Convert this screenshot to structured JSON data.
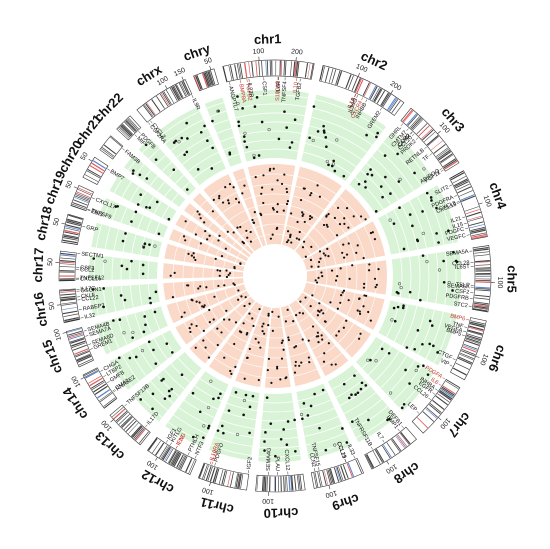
{
  "colors": {
    "outer_band": "#d8f3d6",
    "inner_band": "#fbd9c8",
    "band_ring": "#ffffff",
    "point": "#111111",
    "open_point": "#666666",
    "gene_red": "#c0392b",
    "ideogram_dark": "#222222",
    "ideogram_red": "#d94040",
    "ideogram_blue": "#3a6ec8"
  },
  "chromosomes": [
    {
      "name": "chr1",
      "size": 250,
      "ticks": [
        "100",
        "200"
      ]
    },
    {
      "name": "chr2",
      "size": 243,
      "ticks": [
        "100",
        "200"
      ]
    },
    {
      "name": "chr3",
      "size": 198,
      "ticks": [
        "100"
      ]
    },
    {
      "name": "chr4",
      "size": 191,
      "ticks": [
        "100"
      ]
    },
    {
      "name": "chr5",
      "size": 181,
      "ticks": [
        "100"
      ]
    },
    {
      "name": "chr6",
      "size": 171,
      "ticks": [
        "100"
      ]
    },
    {
      "name": "chr7",
      "size": 159,
      "ticks": [
        "100"
      ]
    },
    {
      "name": "chr8",
      "size": 146,
      "ticks": [
        "100"
      ]
    },
    {
      "name": "chr9",
      "size": 141,
      "ticks": [
        "100"
      ]
    },
    {
      "name": "chr10",
      "size": 135,
      "ticks": [
        "100"
      ]
    },
    {
      "name": "chr11",
      "size": 135,
      "ticks": [
        "100"
      ]
    },
    {
      "name": "chr12",
      "size": 133,
      "ticks": [
        "100"
      ]
    },
    {
      "name": "chr13",
      "size": 115,
      "ticks": [
        "100"
      ]
    },
    {
      "name": "chr14",
      "size": 107,
      "ticks": [
        "100"
      ]
    },
    {
      "name": "chr15",
      "size": 102,
      "ticks": [
        "100"
      ]
    },
    {
      "name": "chr16",
      "size": 90,
      "ticks": [
        "50"
      ]
    },
    {
      "name": "chr17",
      "size": 81,
      "ticks": [
        "50"
      ]
    },
    {
      "name": "chr18",
      "size": 78,
      "ticks": [
        "50"
      ]
    },
    {
      "name": "chr19",
      "size": 59,
      "ticks": [
        "50"
      ]
    },
    {
      "name": "chr20",
      "size": 63,
      "ticks": [
        "50"
      ]
    },
    {
      "name": "chr21",
      "size": 48,
      "ticks": [
        ""
      ]
    },
    {
      "name": "chr22",
      "size": 51,
      "ticks": [
        ""
      ]
    },
    {
      "name": "chrx",
      "size": 155,
      "ticks": [
        "100",
        "150"
      ]
    },
    {
      "name": "chry",
      "size": 59,
      "ticks": [
        "50"
      ]
    }
  ],
  "genes": [
    {
      "label": "ANGPTL7",
      "chr": "chr1",
      "pos": 8,
      "red": false
    },
    {
      "label": "BMP8A",
      "chr": "chr1",
      "pos": 40,
      "red": true
    },
    {
      "label": "TGFB2",
      "chr": "chr1",
      "pos": 60,
      "red": true
    },
    {
      "label": "IL23R",
      "chr": "chr1",
      "pos": 66,
      "red": false
    },
    {
      "label": "CSF1",
      "chr": "chr1",
      "pos": 110,
      "red": false
    },
    {
      "label": "S100A8",
      "chr": "chr1",
      "pos": 152,
      "red": true
    },
    {
      "label": "IL6R",
      "chr": "chr1",
      "pos": 154,
      "red": false
    },
    {
      "label": "TNFSF4",
      "chr": "chr1",
      "pos": 173,
      "red": false
    },
    {
      "label": "IL10",
      "chr": "chr1",
      "pos": 207,
      "red": true
    },
    {
      "label": "TGFB2",
      "chr": "chr1",
      "pos": 218,
      "red": false
    },
    {
      "label": "IL1A",
      "chr": "chr2",
      "pos": 113,
      "red": false
    },
    {
      "label": "IL1B",
      "chr": "chr2",
      "pos": 114,
      "red": true
    },
    {
      "label": "IL36G",
      "chr": "chr2",
      "pos": 120,
      "red": false
    },
    {
      "label": "CXCR4",
      "chr": "chr2",
      "pos": 136,
      "red": true
    },
    {
      "label": "INHBB",
      "chr": "chr2",
      "pos": 150,
      "red": false
    },
    {
      "label": "GREM2",
      "chr": "chr2",
      "pos": 200,
      "red": false
    },
    {
      "label": "CCR2",
      "chr": "chr3",
      "pos": 46,
      "red": false
    },
    {
      "label": "CCL20",
      "chr": "chr3",
      "pos": 55,
      "red": false
    },
    {
      "label": "GHRL",
      "chr": "chr3",
      "pos": 10,
      "red": false
    },
    {
      "label": "CMTM7",
      "chr": "chr3",
      "pos": 32,
      "red": false
    },
    {
      "label": "CAMP",
      "chr": "chr3",
      "pos": 48,
      "red": false
    },
    {
      "label": "TF",
      "chr": "chr3",
      "pos": 133,
      "red": false
    },
    {
      "label": "PROK2",
      "chr": "chr3",
      "pos": 71,
      "red": false
    },
    {
      "label": "RETNLB",
      "chr": "chr3",
      "pos": 108,
      "red": false
    },
    {
      "label": "ADIPOQ",
      "chr": "chr3",
      "pos": 186,
      "red": false
    },
    {
      "label": "FGF12",
      "chr": "chr3",
      "pos": 192,
      "red": false
    },
    {
      "label": "SLIT2",
      "chr": "chr4",
      "pos": 20,
      "red": false
    },
    {
      "label": "PDGFRA",
      "chr": "chr4",
      "pos": 54,
      "red": false
    },
    {
      "label": "CXCL8",
      "chr": "chr4",
      "pos": 73,
      "red": false
    },
    {
      "label": "CXCL13",
      "chr": "chr4",
      "pos": 77,
      "red": false
    },
    {
      "label": "IL21",
      "chr": "chr4",
      "pos": 122,
      "red": false
    },
    {
      "label": "IL15",
      "chr": "chr4",
      "pos": 141,
      "red": false
    },
    {
      "label": "PDGFC",
      "chr": "chr4",
      "pos": 156,
      "red": false
    },
    {
      "label": "VEGFC",
      "chr": "chr4",
      "pos": 176,
      "red": false
    },
    {
      "label": "SEMA5A",
      "chr": "chr5",
      "pos": 9,
      "red": false
    },
    {
      "label": "CCL28",
      "chr": "chr5",
      "pos": 43,
      "red": false
    },
    {
      "label": "IL6ST",
      "chr": "chr5",
      "pos": 55,
      "red": false
    },
    {
      "label": "TSLP",
      "chr": "chr5",
      "pos": 111,
      "red": false
    },
    {
      "label": "SEMA6A",
      "chr": "chr5",
      "pos": 116,
      "red": false
    },
    {
      "label": "CSF2",
      "chr": "chr5",
      "pos": 132,
      "red": false
    },
    {
      "label": "PDGFRB",
      "chr": "chr5",
      "pos": 150,
      "red": false
    },
    {
      "label": "STC2",
      "chr": "chr5",
      "pos": 173,
      "red": false
    },
    {
      "label": "BMP6",
      "chr": "chr6",
      "pos": 8,
      "red": true
    },
    {
      "label": "TNF",
      "chr": "chr6",
      "pos": 31,
      "red": false
    },
    {
      "label": "VEGFA",
      "chr": "chr6",
      "pos": 44,
      "red": false
    },
    {
      "label": "BMP5",
      "chr": "chr6",
      "pos": 56,
      "red": false
    },
    {
      "label": "CTGF",
      "chr": "chr6",
      "pos": 132,
      "red": false
    },
    {
      "label": "VIP",
      "chr": "chr6",
      "pos": 153,
      "red": false
    },
    {
      "label": "PDGFA",
      "chr": "chr7",
      "pos": 1,
      "red": true
    },
    {
      "label": "IL6",
      "chr": "chr7",
      "pos": 23,
      "red": true
    },
    {
      "label": "INHBA",
      "chr": "chr7",
      "pos": 41,
      "red": false
    },
    {
      "label": "EGFR",
      "chr": "chr7",
      "pos": 55,
      "red": false
    },
    {
      "label": "CCL26",
      "chr": "chr7",
      "pos": 75,
      "red": false
    },
    {
      "label": "LEP",
      "chr": "chr7",
      "pos": 128,
      "red": false
    },
    {
      "label": "DEFB1",
      "chr": "chr8",
      "pos": 7,
      "red": false
    },
    {
      "label": "BMP1",
      "chr": "chr8",
      "pos": 22,
      "red": false
    },
    {
      "label": "IL7",
      "chr": "chr8",
      "pos": 78,
      "red": false
    },
    {
      "label": "TNFRSF11B",
      "chr": "chr8",
      "pos": 118,
      "red": false
    },
    {
      "label": "CCL19",
      "chr": "chr9",
      "pos": 34,
      "red": false
    },
    {
      "label": "CCL21",
      "chr": "chr9",
      "pos": 34.5,
      "red": false
    },
    {
      "label": "IL33",
      "chr": "chr9",
      "pos": 6,
      "red": false
    },
    {
      "label": "TNFSF15",
      "chr": "chr9",
      "pos": 117,
      "red": false
    },
    {
      "label": "LCN2",
      "chr": "chr9",
      "pos": 130,
      "red": false
    },
    {
      "label": "SEMA4G",
      "chr": "chr10",
      "pos": 102,
      "red": false
    },
    {
      "label": "PLAU",
      "chr": "chr10",
      "pos": 75,
      "red": false
    },
    {
      "label": "CXCL12",
      "chr": "chr10",
      "pos": 44,
      "red": false
    },
    {
      "label": "PDGFD",
      "chr": "chr11",
      "pos": 103,
      "red": false
    },
    {
      "label": "IL10RA",
      "chr": "chr11",
      "pos": 117,
      "red": true
    },
    {
      "label": "IL18",
      "chr": "chr11",
      "pos": 112,
      "red": true
    },
    {
      "label": "IGF2",
      "chr": "chr11",
      "pos": 2,
      "red": false
    },
    {
      "label": "IGF1",
      "chr": "chr12",
      "pos": 102,
      "red": false
    },
    {
      "label": "IL22",
      "chr": "chr12",
      "pos": 68,
      "red": true
    },
    {
      "label": "IFNG",
      "chr": "chr12",
      "pos": 68.5,
      "red": true
    },
    {
      "label": "KITLG",
      "chr": "chr12",
      "pos": 88,
      "red": false
    },
    {
      "label": "PTHLH",
      "chr": "chr12",
      "pos": 28,
      "red": false
    },
    {
      "label": "NTF3",
      "chr": "chr12",
      "pos": 5,
      "red": false
    },
    {
      "label": "IL17D",
      "chr": "chr13",
      "pos": 21,
      "red": false
    },
    {
      "label": "TNFSF13B",
      "chr": "chr13",
      "pos": 108,
      "red": false
    },
    {
      "label": "CHGA",
      "chr": "chr14",
      "pos": 93,
      "red": false
    },
    {
      "label": "LTBP2",
      "chr": "chr14",
      "pos": 75,
      "red": false
    },
    {
      "label": "GMFB",
      "chr": "chr14",
      "pos": 54,
      "red": false
    },
    {
      "label": "CMA1",
      "chr": "chr14",
      "pos": 25,
      "red": false
    },
    {
      "label": "RNASE2",
      "chr": "chr14",
      "pos": 21,
      "red": false
    },
    {
      "label": "SEMA4B",
      "chr": "chr15",
      "pos": 90,
      "red": false
    },
    {
      "label": "SEMA6D",
      "chr": "chr15",
      "pos": 48,
      "red": false
    },
    {
      "label": "SEMA7A",
      "chr": "chr15",
      "pos": 74,
      "red": false
    },
    {
      "label": "GREM1",
      "chr": "chr15",
      "pos": 33,
      "red": false
    },
    {
      "label": "IL32",
      "chr": "chr16",
      "pos": 3,
      "red": false
    },
    {
      "label": "RABEP2",
      "chr": "chr16",
      "pos": 28,
      "red": false
    },
    {
      "label": "CCL22",
      "chr": "chr16",
      "pos": 57,
      "red": false
    },
    {
      "label": "CKLF",
      "chr": "chr16",
      "pos": 66,
      "red": false
    },
    {
      "label": "OSGIN1",
      "chr": "chr16",
      "pos": 83,
      "red": false
    },
    {
      "label": "IL17C",
      "chr": "chr16",
      "pos": 88,
      "red": false
    },
    {
      "label": "CXCL16",
      "chr": "chr17",
      "pos": 4,
      "red": false
    },
    {
      "label": "TNFSF12",
      "chr": "chr17",
      "pos": 7,
      "red": false
    },
    {
      "label": "CCL2",
      "chr": "chr17",
      "pos": 32,
      "red": false
    },
    {
      "label": "CSF3",
      "chr": "chr17",
      "pos": 38,
      "red": false
    },
    {
      "label": "SECTM1",
      "chr": "chr17",
      "pos": 80,
      "red": false
    },
    {
      "label": "GRP",
      "chr": "chr18",
      "pos": 56,
      "red": false
    },
    {
      "label": "EBI3",
      "chr": "chr19",
      "pos": 4,
      "red": false
    },
    {
      "label": "TNFSF9",
      "chr": "chr19",
      "pos": 6,
      "red": false
    },
    {
      "label": "CXCL17",
      "chr": "chr19",
      "pos": 42,
      "red": false
    },
    {
      "label": "BMP7",
      "chr": "chr20",
      "pos": 55,
      "red": false
    },
    {
      "label": "FAM3B",
      "chr": "chr21",
      "pos": 42,
      "red": false
    },
    {
      "label": "MIF",
      "chr": "chr22",
      "pos": 24,
      "red": false
    },
    {
      "label": "PDGFB",
      "chr": "chr22",
      "pos": 39,
      "red": false
    },
    {
      "label": "CSF2RA",
      "chrx": "chrx",
      "chr": "chrx",
      "pos": 2,
      "red": false
    },
    {
      "label": "CXCL2",
      "chr": "chrx",
      "pos": 10,
      "red": false
    },
    {
      "label": "IL9R",
      "chr": "chrx",
      "pos": 154,
      "red": false
    }
  ]
}
